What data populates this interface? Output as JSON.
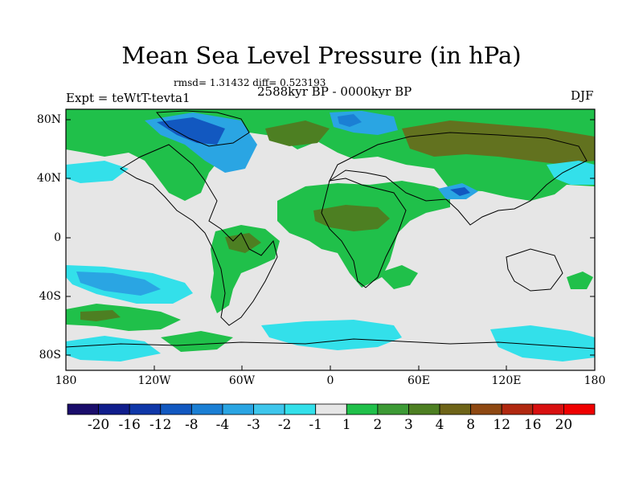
{
  "title": "Mean Sea Level Pressure (in hPa)",
  "stats": "rmsd= 1.31432  diff= 0.523193",
  "period": "2588kyr BP - 0000kyr BP",
  "experiment": "Expt = teWtT-tevta1",
  "season": "DJF",
  "axes": {
    "y_ticks": [
      "80N",
      "40N",
      "0",
      "40S",
      "80S"
    ],
    "x_ticks": [
      "180",
      "120W",
      "60W",
      "0",
      "60E",
      "120E",
      "180"
    ]
  },
  "colorbar": {
    "labels": [
      "-20",
      "-16",
      "-12",
      "-8",
      "-4",
      "-3",
      "-2",
      "-1",
      "1",
      "2",
      "3",
      "4",
      "8",
      "12",
      "16",
      "20"
    ],
    "colors": [
      "#1a0d6b",
      "#101d8c",
      "#0f37a8",
      "#1258c0",
      "#1b7fd4",
      "#2aa5e3",
      "#3ec6ec",
      "#33e0ea",
      "#e6e6e6",
      "#20c04a",
      "#3c9a35",
      "#4d7f22",
      "#6e6418",
      "#8e4812",
      "#b02810",
      "#d81010",
      "#ef0000"
    ]
  },
  "regions": [
    {
      "name": "north-atlantic-green",
      "color": "#20c04a"
    },
    {
      "name": "greenland-blue",
      "color": "#1b7fd4"
    },
    {
      "name": "tibet-blue",
      "color": "#2aa5e3"
    },
    {
      "name": "siberia-brown",
      "color": "#6e6418"
    },
    {
      "name": "south-pacific-blue",
      "color": "#33e0ea"
    }
  ]
}
